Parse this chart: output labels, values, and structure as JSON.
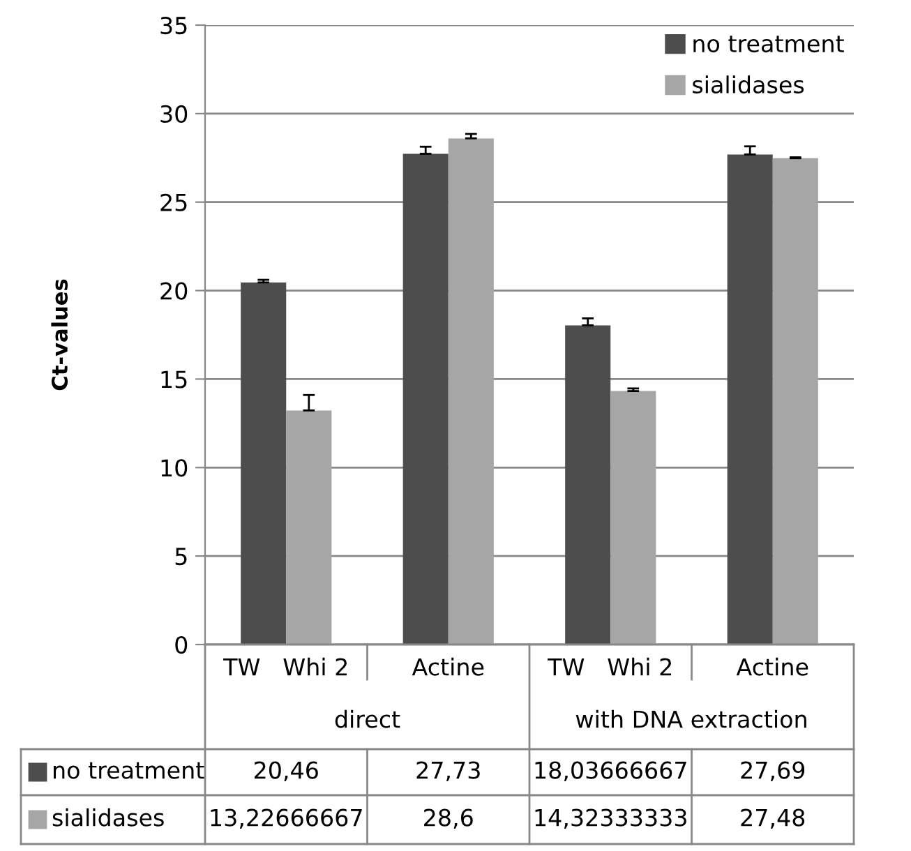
{
  "chart_data": {
    "type": "bar",
    "ylabel": "Ct-values",
    "categories": [
      "TW   Whi 2",
      "Actine",
      "TW   Whi 2",
      "Actine"
    ],
    "annotations": [
      "direct",
      "with DNA extraction"
    ],
    "series": [
      {
        "name": "no treatment",
        "color": "#4d4d4d",
        "values": [
          20.46,
          27.73,
          18.03666667,
          27.69
        ],
        "value_labels": [
          "20,46",
          "27,73",
          "18,03666667",
          "27,69"
        ],
        "errors": [
          [
            20.46,
            20.61
          ],
          [
            27.73,
            28.13
          ],
          [
            18.03666667,
            18.43
          ],
          [
            27.69,
            28.15
          ]
        ]
      },
      {
        "name": "sialidases",
        "color": "#a6a6a6",
        "values": [
          13.22666667,
          28.6,
          14.32333333,
          27.48
        ],
        "value_labels": [
          "13,22666667",
          "28,6",
          "14,32333333",
          "27,48"
        ],
        "errors": [
          [
            13.22666667,
            14.1
          ],
          [
            28.6,
            28.85
          ],
          [
            14.32333333,
            14.47
          ],
          [
            27.48,
            27.53
          ]
        ]
      }
    ],
    "ylim": [
      0,
      35
    ],
    "yticks": [
      0,
      5,
      10,
      15,
      20,
      25,
      30,
      35
    ],
    "grid": "y",
    "legend": "top right"
  }
}
